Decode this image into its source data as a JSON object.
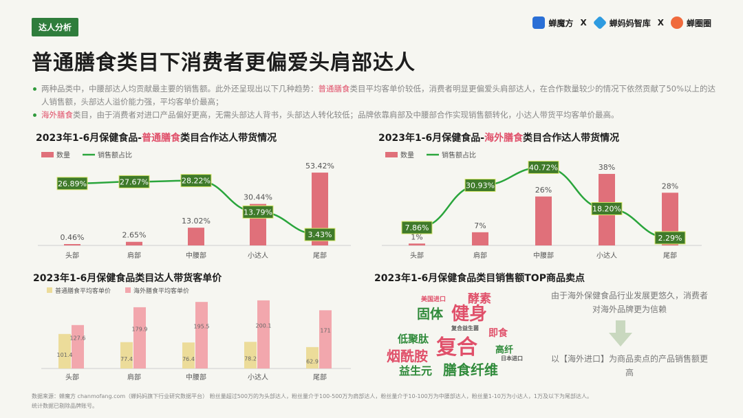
{
  "tag": "达人分析",
  "brands": [
    {
      "name": "蝉魔方",
      "color": "#2a6fd6",
      "icon": "cube-logo"
    },
    {
      "name": "蝉妈妈智库",
      "color": "#2e9be0",
      "icon": "diamond-logo"
    },
    {
      "name": "蝉圈圈",
      "color": "#f06a3c",
      "icon": "circle-logo"
    }
  ],
  "separator": "X",
  "title": "普通膳食类目下消费者更偏爱头肩部达人",
  "bullets": [
    {
      "pre": "两种品类中，中腰部达人均贡献最主要的销售额。此外还呈现出以下几种趋势：",
      "hl": "普通膳食",
      "post": "类目平均客单价较低，消费者明显更偏爱头肩部达人，在合作数量较少的情况下依然贡献了50%以上的达人销售额，头部达人溢价能力强，平均客单价最高；"
    },
    {
      "pre": "",
      "hl": "海外膳食",
      "post": "类目，由于消费者对进口产品偏好更高，无需头部达人背书，头部达人转化较低；品牌依靠肩部及中腰部合作实现销售额转化，小达人带货平均客单价最高。"
    }
  ],
  "charts": {
    "c1": {
      "pre": "2023年1-6月保健食品-",
      "hl": "普通膳食",
      "post": "类目合作达人带货情况"
    },
    "c2": {
      "pre": "2023年1-6月保健食品-",
      "hl": "海外膳食",
      "post": "类目合作达人带货情况"
    },
    "c3": {
      "title": "2023年1-6月保健食品类目达人带货客单价"
    },
    "c4": {
      "title": "2023年1-6月保健食品类目销售额TOP商品卖点"
    }
  },
  "chart_data": [
    {
      "type": "bar",
      "title": "2023年1-6月保健食品-普通膳食类目合作达人带货情况",
      "categories": [
        "头部",
        "肩部",
        "中腰部",
        "小达人",
        "尾部"
      ],
      "series": [
        {
          "name": "数量",
          "kind": "bar",
          "color": "#e0707a",
          "values": [
            0.46,
            2.65,
            13.02,
            30.44,
            53.42
          ],
          "labels": [
            "0.46%",
            "2.65%",
            "13.02%",
            "30.44%",
            "53.42%"
          ]
        },
        {
          "name": "销售额占比",
          "kind": "line",
          "color": "#2aa53c",
          "values": [
            26.89,
            27.67,
            28.22,
            13.79,
            3.43
          ],
          "labels": [
            "26.89%",
            "27.67%",
            "28.22%",
            "13.79%",
            "3.43%"
          ]
        }
      ],
      "legend": "top-left"
    },
    {
      "type": "bar",
      "title": "2023年1-6月保健食品-海外膳食类目合作达人带货情况",
      "categories": [
        "头部",
        "肩部",
        "中腰部",
        "小达人",
        "尾部"
      ],
      "series": [
        {
          "name": "数量",
          "kind": "bar",
          "color": "#e0707a",
          "values": [
            1,
            7,
            26,
            38,
            28
          ],
          "labels": [
            "1%",
            "7%",
            "26%",
            "38%",
            "28%"
          ]
        },
        {
          "name": "销售额占比",
          "kind": "line",
          "color": "#2aa53c",
          "values": [
            7.86,
            30.93,
            40.72,
            18.2,
            2.29
          ],
          "labels": [
            "7.86%",
            "30.93%",
            "40.72%",
            "18.20%",
            "2.29%"
          ]
        }
      ],
      "legend": "top-left"
    },
    {
      "type": "bar",
      "title": "2023年1-6月保健食品类目达人带货客单价",
      "categories": [
        "头部",
        "肩部",
        "中腰部",
        "小达人",
        "尾部"
      ],
      "series": [
        {
          "name": "普通膳食平均客单价",
          "color": "#ecdc9a",
          "values": [
            101.4,
            77.4,
            76.4,
            78.2,
            62.9
          ],
          "labels": [
            "101.4",
            "77.4",
            "76.4",
            "78.2",
            "62.9"
          ]
        },
        {
          "name": "海外膳食平均客单价",
          "color": "#f2a7ad",
          "values": [
            127.6,
            179.9,
            195.5,
            200.1,
            171
          ],
          "labels": [
            "127.6",
            "179.9",
            "195.5",
            "200.1",
            "171"
          ]
        }
      ],
      "legend": "top-left"
    }
  ],
  "wordcloud": [
    {
      "text": "健身",
      "color": "#e0506a",
      "size": 26
    },
    {
      "text": "复合",
      "color": "#e0506a",
      "size": 30
    },
    {
      "text": "膳食纤维",
      "color": "#2f8a3a",
      "size": 20
    },
    {
      "text": "烟酰胺",
      "color": "#e0506a",
      "size": 20
    },
    {
      "text": "固体",
      "color": "#2f8a3a",
      "size": 19
    },
    {
      "text": "酵素",
      "color": "#e0506a",
      "size": 17
    },
    {
      "text": "低聚肽",
      "color": "#2f8a3a",
      "size": 15
    },
    {
      "text": "益生元",
      "color": "#2f8a3a",
      "size": 16
    },
    {
      "text": "即食",
      "color": "#e0506a",
      "size": 14
    },
    {
      "text": "高纤",
      "color": "#2f8a3a",
      "size": 13
    },
    {
      "text": "美国进口",
      "color": "#e0506a",
      "size": 9
    },
    {
      "text": "复合益生菌",
      "color": "#555555",
      "size": 8
    },
    {
      "text": "日本进口",
      "color": "#555555",
      "size": 8
    }
  ],
  "note_top": "由于海外保健食品行业发展更悠久，消费者对海外品牌更为信赖",
  "note_bottom": "以【海外进口】为商品卖点的产品销售额更高",
  "footer": [
    "数据来源：蝉魔方 chanmofang.com（蝉妈妈旗下行业研究数据平台） 粉丝量超过500万的为头部达人，粉丝量介于100-500万为肩部达人，粉丝量介于10-100万为中腰部达人，粉丝量1-10万为小达人，1万及以下为尾部达人。",
    "统计数据已剔除品牌账号。"
  ]
}
